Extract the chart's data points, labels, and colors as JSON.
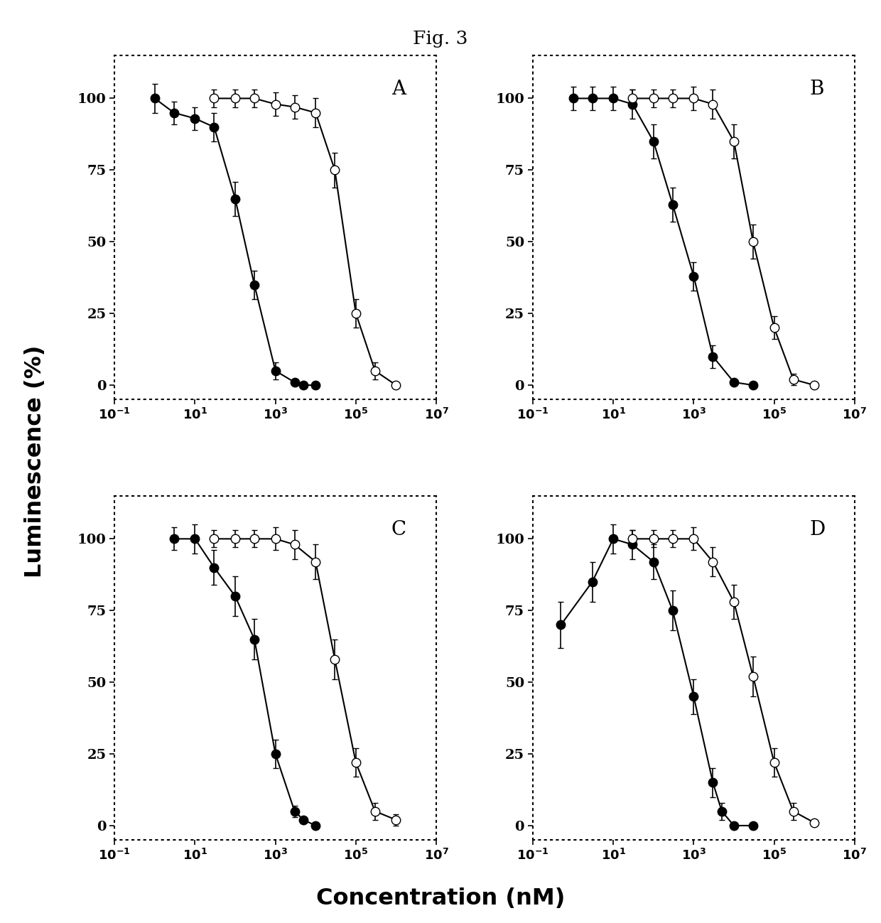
{
  "title": "Fig. 3",
  "xlabel": "Concentration (nM)",
  "ylabel": "Luminescence (%)",
  "panels": [
    "A",
    "B",
    "C",
    "D"
  ],
  "ylim": [
    -5,
    115
  ],
  "yticks": [
    0,
    25,
    50,
    75,
    100
  ],
  "xtick_vals": [
    0.1,
    10,
    1000,
    100000,
    10000000
  ],
  "panel_A": {
    "filled_x": [
      1,
      3,
      10,
      30,
      100,
      300,
      1000,
      3000,
      5000,
      10000
    ],
    "filled_y": [
      100,
      95,
      93,
      90,
      65,
      35,
      5,
      1,
      0,
      0
    ],
    "filled_yerr": [
      5,
      4,
      4,
      5,
      6,
      5,
      3,
      1,
      0,
      0
    ],
    "open_x": [
      30,
      100,
      300,
      1000,
      3000,
      10000,
      30000,
      100000,
      300000,
      1000000
    ],
    "open_y": [
      100,
      100,
      100,
      98,
      97,
      95,
      75,
      25,
      5,
      0
    ],
    "open_yerr": [
      3,
      3,
      3,
      4,
      4,
      5,
      6,
      5,
      3,
      1
    ]
  },
  "panel_B": {
    "filled_x": [
      1,
      3,
      10,
      30,
      100,
      300,
      1000,
      3000,
      10000,
      30000
    ],
    "filled_y": [
      100,
      100,
      100,
      98,
      85,
      63,
      38,
      10,
      1,
      0
    ],
    "filled_yerr": [
      4,
      4,
      4,
      5,
      6,
      6,
      5,
      4,
      1,
      0
    ],
    "open_x": [
      30,
      100,
      300,
      1000,
      3000,
      10000,
      30000,
      100000,
      300000,
      1000000
    ],
    "open_y": [
      100,
      100,
      100,
      100,
      98,
      85,
      50,
      20,
      2,
      0
    ],
    "open_yerr": [
      3,
      3,
      3,
      4,
      5,
      6,
      6,
      4,
      2,
      0
    ]
  },
  "panel_C": {
    "filled_x": [
      3,
      10,
      30,
      100,
      300,
      1000,
      3000,
      5000,
      10000
    ],
    "filled_y": [
      100,
      100,
      90,
      80,
      65,
      25,
      5,
      2,
      0
    ],
    "filled_yerr": [
      4,
      5,
      6,
      7,
      7,
      5,
      2,
      1,
      0
    ],
    "open_x": [
      30,
      100,
      300,
      1000,
      3000,
      10000,
      30000,
      100000,
      300000,
      1000000
    ],
    "open_y": [
      100,
      100,
      100,
      100,
      98,
      92,
      58,
      22,
      5,
      2
    ],
    "open_yerr": [
      3,
      3,
      3,
      4,
      5,
      6,
      7,
      5,
      3,
      2
    ]
  },
  "panel_D": {
    "filled_x": [
      0.5,
      3,
      10,
      30,
      100,
      300,
      1000,
      3000,
      5000,
      10000,
      30000
    ],
    "filled_y": [
      70,
      85,
      100,
      98,
      92,
      75,
      45,
      15,
      5,
      0,
      0
    ],
    "filled_yerr": [
      8,
      7,
      5,
      5,
      6,
      7,
      6,
      5,
      3,
      1,
      0
    ],
    "open_x": [
      30,
      100,
      300,
      1000,
      3000,
      10000,
      30000,
      100000,
      300000,
      1000000
    ],
    "open_y": [
      100,
      100,
      100,
      100,
      92,
      78,
      52,
      22,
      5,
      1
    ],
    "open_yerr": [
      3,
      3,
      3,
      4,
      5,
      6,
      7,
      5,
      3,
      1
    ]
  }
}
